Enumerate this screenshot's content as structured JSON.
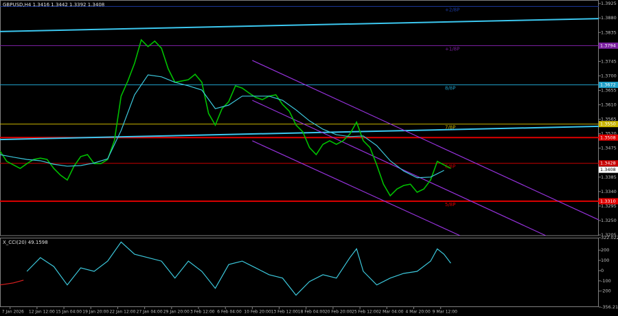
{
  "chart_data": [
    {
      "type": "line",
      "title": "GBPUSD,H4  1.3416 1.3442 1.3392 1.3408",
      "xlim": [
        0,
        356
      ],
      "ylim": [
        1.3203,
        1.3936
      ],
      "grid": false,
      "yticks": [
        1.3925,
        {
          "value": 1.388,
          "label": "1.3880"
        },
        1.3835,
        {
          "value": 1.379,
          "label": "1.3790"
        },
        1.3745,
        {
          "value": 1.37,
          "label": "1.3700"
        },
        1.3655,
        {
          "value": 1.361,
          "label": "1.3610"
        },
        1.3565,
        {
          "value": 1.352,
          "label": "1.3520"
        },
        1.3475,
        {
          "value": 1.343,
          "label": "1.3430"
        },
        1.3385,
        {
          "value": 1.334,
          "label": "1.3340"
        },
        1.3295,
        {
          "value": 1.325,
          "label": "1.3250"
        },
        1.3205
      ],
      "series": [
        {
          "color": "#00c000",
          "x": [
            0,
            4,
            8,
            12,
            16,
            20,
            24,
            28,
            32,
            36,
            40,
            44,
            48,
            52,
            56,
            60,
            64,
            68,
            72,
            76,
            80,
            84,
            88,
            92,
            96,
            100,
            104,
            108,
            112,
            116,
            120,
            124,
            128,
            132,
            136,
            140,
            144,
            148,
            152,
            156,
            160,
            164,
            168,
            172,
            176,
            180,
            184,
            188,
            192,
            196,
            200,
            204,
            208,
            212,
            216,
            220,
            224,
            228,
            232,
            236,
            240,
            244,
            248,
            252,
            256,
            260,
            264,
            268
          ],
          "values": [
            1.3466,
            1.3434,
            1.3423,
            1.3412,
            1.3427,
            1.344,
            1.3444,
            1.344,
            1.3412,
            1.3391,
            1.3376,
            1.3419,
            1.3449,
            1.3455,
            1.3427,
            1.3427,
            1.344,
            1.3498,
            1.3637,
            1.3684,
            1.3739,
            1.3812,
            1.3791,
            1.3808,
            1.3786,
            1.3722,
            1.368,
            1.3684,
            1.3688,
            1.3705,
            1.368,
            1.3583,
            1.3547,
            1.3598,
            1.362,
            1.3669,
            1.3662,
            1.3647,
            1.3633,
            1.3626,
            1.3637,
            1.3641,
            1.3611,
            1.359,
            1.3547,
            1.3526,
            1.3477,
            1.3455,
            1.3487,
            1.3498,
            1.3487,
            1.3498,
            1.3519,
            1.3556,
            1.3498,
            1.3477,
            1.3423,
            1.3363,
            1.3327,
            1.3348,
            1.3359,
            1.3363,
            1.3338,
            1.3348,
            1.3376,
            1.3434,
            1.3423,
            1.3412
          ]
        },
        {
          "color": "#3cc8dc",
          "x": [
            0,
            8,
            16,
            24,
            32,
            40,
            48,
            56,
            64,
            72,
            80,
            88,
            96,
            104,
            112,
            120,
            128,
            136,
            144,
            152,
            160,
            168,
            176,
            184,
            192,
            200,
            208,
            216,
            224,
            232,
            240,
            248,
            256,
            264
          ],
          "values": [
            1.3455,
            1.3447,
            1.344,
            1.3436,
            1.3425,
            1.3419,
            1.3421,
            1.3429,
            1.3442,
            1.353,
            1.3641,
            1.3703,
            1.3697,
            1.368,
            1.3669,
            1.3656,
            1.3598,
            1.3609,
            1.3637,
            1.3637,
            1.3637,
            1.3624,
            1.3594,
            1.356,
            1.3534,
            1.3517,
            1.3511,
            1.3513,
            1.3483,
            1.3436,
            1.3404,
            1.3383,
            1.3385,
            1.3406
          ]
        }
      ],
      "trendlines": [
        {
          "color": "#3cc8f0",
          "x": [
            0,
            356
          ],
          "values": [
            1.3838,
            1.3878
          ]
        },
        {
          "color": "#3cc8f0",
          "x": [
            0,
            356
          ],
          "values": [
            1.3502,
            1.3543
          ]
        },
        {
          "color": "#9632dc",
          "x": [
            150,
            356
          ],
          "values": [
            1.3748,
            1.3252
          ]
        },
        {
          "color": "#9632dc",
          "x": [
            150,
            324.5
          ],
          "values": [
            1.3624,
            1.3203
          ]
        },
        {
          "color": "#9632dc",
          "x": [
            150,
            273.5
          ],
          "values": [
            1.3498,
            1.3203
          ]
        }
      ],
      "levels": [
        {
          "name": "+2/8P",
          "value": 1.3916,
          "color": "#1c3aa0"
        },
        {
          "name": "+1/8P",
          "value": 1.3794,
          "label": "1.3794",
          "color": "#7a1fa0"
        },
        {
          "name": "8/8P",
          "value": 1.3672,
          "label": "1.3672",
          "color": "#1fa0c8"
        },
        {
          "name": "7/8P",
          "value": 1.355,
          "label": "1.3550",
          "color": "#c8b400"
        },
        {
          "value": 1.3508,
          "label": "1.3508",
          "color": "#e00000"
        },
        {
          "name": "6/8P",
          "value": 1.3428,
          "label": "1.3428",
          "color": "#c80000"
        },
        {
          "name": "5/8P",
          "value": 1.331,
          "label": "1.3310",
          "color": "#e00000"
        }
      ],
      "last_price": 1.3408
    },
    {
      "type": "line",
      "title": "X_CCI(20) 49.1598",
      "xlim": [
        0,
        356
      ],
      "ylim": [
        -356.214,
        322.0224
      ],
      "grid": false,
      "yticks": [
        322.0224,
        200,
        100,
        0,
        -100,
        -200,
        -356.214
      ],
      "xticks": [
        {
          "value": 6,
          "label": "7 Jan 2026"
        },
        {
          "value": 22,
          "label": "12 Jan 12:00"
        },
        {
          "value": 38,
          "label": "15 Jan 04:00"
        },
        {
          "value": 54,
          "label": "19 Jan 20:00"
        },
        {
          "value": 70,
          "label": "22 Jan 12:00"
        },
        {
          "value": 86,
          "label": "27 Jan 04:00"
        },
        {
          "value": 102,
          "label": "29 Jan 20:00"
        },
        {
          "value": 118,
          "label": "3 Feb 12:00"
        },
        {
          "value": 134,
          "label": "6 Feb 04:00"
        },
        {
          "value": 150,
          "label": "10 Feb 20:00"
        },
        {
          "value": 166,
          "label": "13 Feb 12:00"
        },
        {
          "value": 182,
          "label": "18 Feb 04:00"
        },
        {
          "value": 198,
          "label": "20 Feb 20:00"
        },
        {
          "value": 214,
          "label": "25 Feb 12:00"
        },
        {
          "value": 230,
          "label": "2 Mar 04:00"
        },
        {
          "value": 246,
          "label": "4 Mar 20:00"
        },
        {
          "value": 262,
          "label": "9 Mar 12:00"
        }
      ],
      "series": [
        {
          "color": "#e02020",
          "x": [
            0,
            8,
            14
          ],
          "values": [
            -140,
            -120,
            -93
          ]
        },
        {
          "color": "#3cc8dc",
          "x": [
            16,
            24,
            32,
            40,
            48,
            56,
            64,
            72,
            80,
            88,
            96,
            104,
            112,
            120,
            128,
            136,
            144,
            152,
            160,
            168,
            176,
            184,
            192,
            200,
            208,
            212,
            216,
            224,
            232,
            240,
            248,
            256,
            260,
            264,
            268
          ],
          "values": [
            -7,
            127,
            40,
            -140,
            27,
            -7,
            93,
            280,
            160,
            127,
            93,
            -73,
            93,
            -7,
            -173,
            60,
            93,
            27,
            -40,
            -73,
            -240,
            -107,
            -40,
            -73,
            127,
            213,
            -7,
            -140,
            -73,
            -27,
            -7,
            93,
            213,
            160,
            73
          ]
        }
      ]
    }
  ]
}
